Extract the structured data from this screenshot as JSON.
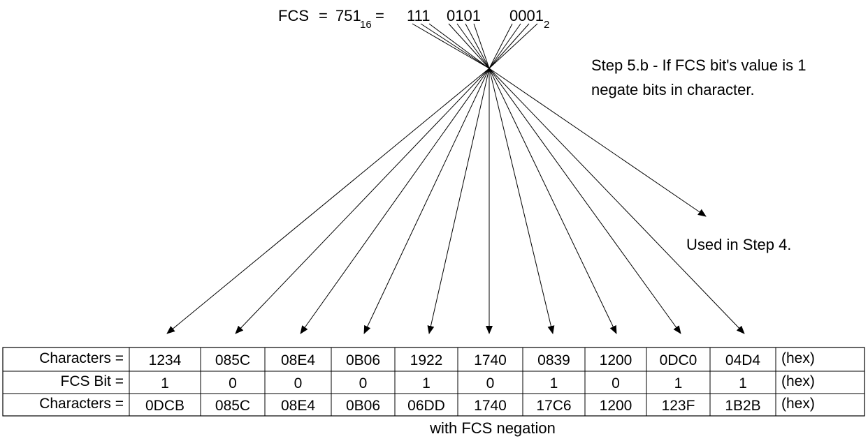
{
  "header": {
    "fcs_label": "FCS",
    "eq1": "=",
    "hex_value": "751",
    "hex_base": "16",
    "eq2": "=",
    "bin_groups": [
      "111",
      "0101",
      "0001"
    ],
    "bin_base": "2"
  },
  "notes": {
    "step5b_line1": "Step 5.b - If FCS bit's value is 1",
    "step5b_line2": "negate bits in character.",
    "step4": "Used in Step 4."
  },
  "table": {
    "rows": [
      {
        "label": "Characters  =",
        "values": [
          "1234",
          "085C",
          "08E4",
          "0B06",
          "1922",
          "1740",
          "0839",
          "1200",
          "0DC0",
          "04D4"
        ],
        "unit": "(hex)"
      },
      {
        "label": "FCS Bit =",
        "values": [
          "1",
          "0",
          "0",
          "0",
          "1",
          "0",
          "1",
          "0",
          "1",
          "1"
        ],
        "unit": "(hex)"
      },
      {
        "label": "Characters =",
        "values": [
          "0DCB",
          "085C",
          "08E4",
          "0B06",
          "06DD",
          "1740",
          "17C6",
          "1200",
          "123F",
          "1B2B"
        ],
        "unit": "(hex)"
      }
    ],
    "caption": "with FCS negation"
  }
}
